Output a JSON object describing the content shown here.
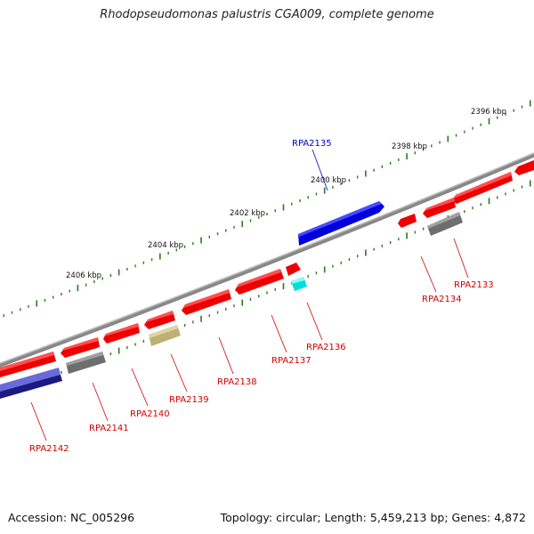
{
  "title": "Rhodopseudomonas palustris CGA009, complete genome",
  "footer": {
    "accession": "Accession: NC_005296",
    "summary": "Topology: circular; Length: 5,459,213 bp; Genes: 4,872"
  },
  "colors": {
    "backbone": "#888888",
    "ticks": "#2a7a1a",
    "gene_red": "#ff0000",
    "gene_grey": "#777777",
    "gene_olive": "#c8bd78",
    "gene_cyan": "#00e5e5",
    "gene_blue": "#1010ee",
    "gene_navy": "#1a1a80",
    "gene_lightblue": "#6a6ad8",
    "label_red": "#d00000",
    "label_blue": "#0000cc"
  },
  "scale_labels": [
    "2396 kbp",
    "2398 kbp",
    "2400 kbp",
    "2402 kbp",
    "2404 kbp",
    "2406 kbp"
  ],
  "gene_labels": [
    {
      "text": "RPA2135",
      "color": "blue"
    },
    {
      "text": "RPA2133",
      "color": "red"
    },
    {
      "text": "RPA2134",
      "color": "red"
    },
    {
      "text": "RPA2136",
      "color": "red"
    },
    {
      "text": "RPA2137",
      "color": "red"
    },
    {
      "text": "RPA2138",
      "color": "red"
    },
    {
      "text": "RPA2139",
      "color": "red"
    },
    {
      "text": "RPA2140",
      "color": "red"
    },
    {
      "text": "RPA2141",
      "color": "red"
    },
    {
      "text": "RPA2142",
      "color": "red"
    }
  ]
}
